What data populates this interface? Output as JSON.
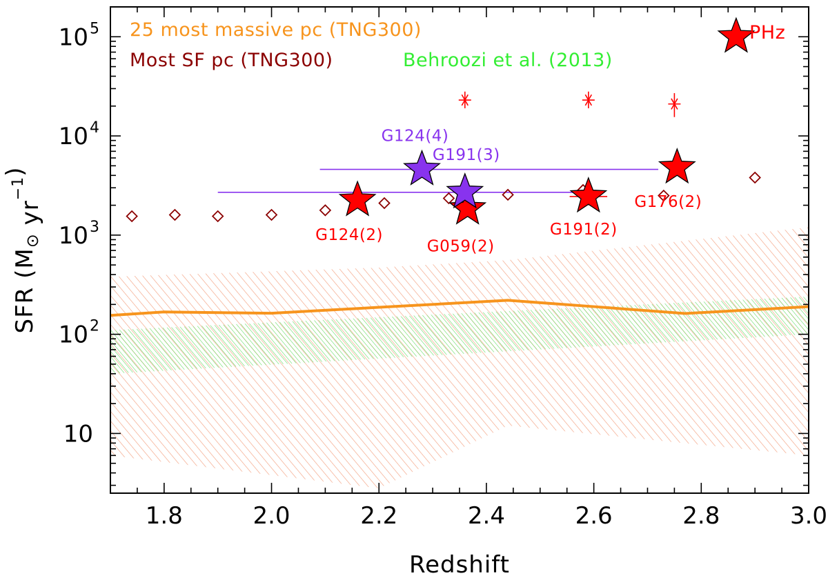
{
  "chart_data": {
    "type": "scatter",
    "xlabel": "Redshift",
    "ylabel_prefix": "SFR (M",
    "ylabel_sun": "⊙",
    "ylabel_unit": " yr",
    "ylabel_exp": "−1",
    "ylabel_close": ")",
    "xlim": [
      1.7,
      3.0
    ],
    "ylim": [
      2.5,
      200000
    ],
    "yscale": "log",
    "x_ticks": [
      {
        "value": 1.8,
        "label": "1.8"
      },
      {
        "value": 2.0,
        "label": "2.0"
      },
      {
        "value": 2.2,
        "label": "2.2"
      },
      {
        "value": 2.4,
        "label": "2.4"
      },
      {
        "value": 2.6,
        "label": "2.6"
      },
      {
        "value": 2.8,
        "label": "2.8"
      },
      {
        "value": 3.0,
        "label": "3.0"
      }
    ],
    "y_ticks": [
      {
        "value": 10,
        "base": "10",
        "exp": ""
      },
      {
        "value": 100,
        "base": "10",
        "exp": "2"
      },
      {
        "value": 1000,
        "base": "10",
        "exp": "3"
      },
      {
        "value": 10000,
        "base": "10",
        "exp": "4"
      },
      {
        "value": 100000,
        "base": "10",
        "exp": "5"
      }
    ],
    "legend": [
      {
        "label": "25 most massive pc (TNG300)",
        "color": "#f7941d"
      },
      {
        "label": "Most SF pc (TNG300)",
        "color": "#8b0000"
      },
      {
        "label": "Behroozi et al. (2013)",
        "color": "#33ee33"
      },
      {
        "label": "PHz",
        "color": "#ff0000"
      }
    ],
    "series": [
      {
        "name": "25 most massive pc (TNG300)",
        "kind": "line",
        "color": "#f7941d",
        "x": [
          1.7,
          1.8,
          2.0,
          2.2,
          2.44,
          2.6,
          2.77,
          3.0
        ],
        "y": [
          155,
          168,
          163,
          187,
          220,
          190,
          162,
          190
        ]
      },
      {
        "name": "25 most massive pc range (TNG300)",
        "kind": "band",
        "color": "#f08060",
        "x": [
          1.7,
          2.2,
          2.44,
          3.0
        ],
        "lower": [
          6,
          2.8,
          12,
          6
        ],
        "upper": [
          380,
          470,
          560,
          1200
        ]
      },
      {
        "name": "Behroozi et al. (2013)",
        "kind": "band",
        "color": "#44cc44",
        "x": [
          1.7,
          3.0
        ],
        "lower": [
          40,
          100
        ],
        "upper": [
          110,
          240
        ]
      },
      {
        "name": "Most SF pc (TNG300)",
        "kind": "diamond",
        "color": "#8b0000",
        "x": [
          1.74,
          1.82,
          1.9,
          2.0,
          2.1,
          2.21,
          2.33,
          2.44,
          2.58,
          2.73,
          2.9
        ],
        "y": [
          1550,
          1600,
          1550,
          1600,
          1780,
          2100,
          2350,
          2550,
          2850,
          2500,
          3800
        ]
      },
      {
        "name": "PHz (red asterisks)",
        "kind": "asterisk",
        "color": "#ff0000",
        "points": [
          {
            "x": 2.36,
            "y": 23000,
            "lo": 19000,
            "hi": 28000
          },
          {
            "x": 2.59,
            "y": 23000,
            "lo": 19000,
            "hi": 28000
          },
          {
            "x": 2.75,
            "y": 21000,
            "lo": 15500,
            "hi": 27000
          }
        ]
      },
      {
        "name": "PHz (stars)",
        "kind": "star",
        "points": [
          {
            "label": "G124(2)",
            "x": 2.16,
            "y": 2250,
            "color": "#ff0000"
          },
          {
            "label": "G059(2)",
            "x": 2.365,
            "y": 1850,
            "color": "#ff0000"
          },
          {
            "label": "G191(2)",
            "x": 2.59,
            "y": 2450,
            "color": "#ff0000",
            "xerr": [
              2.555,
              2.625
            ],
            "yerr": [
              2000,
              3100
            ]
          },
          {
            "label": "G176(2)",
            "x": 2.755,
            "y": 4800,
            "color": "#ff0000"
          },
          {
            "label": "G124(4)",
            "x": 2.28,
            "y": 4600,
            "color": "#8833ee",
            "xerr": [
              2.09,
              2.72
            ]
          },
          {
            "label": "G191(3)",
            "x": 2.36,
            "y": 2700,
            "color": "#8833ee",
            "xerr": [
              1.9,
              2.62
            ]
          },
          {
            "label": "",
            "x": 2.865,
            "y": 100000,
            "color": "#ff0000"
          }
        ]
      }
    ]
  }
}
